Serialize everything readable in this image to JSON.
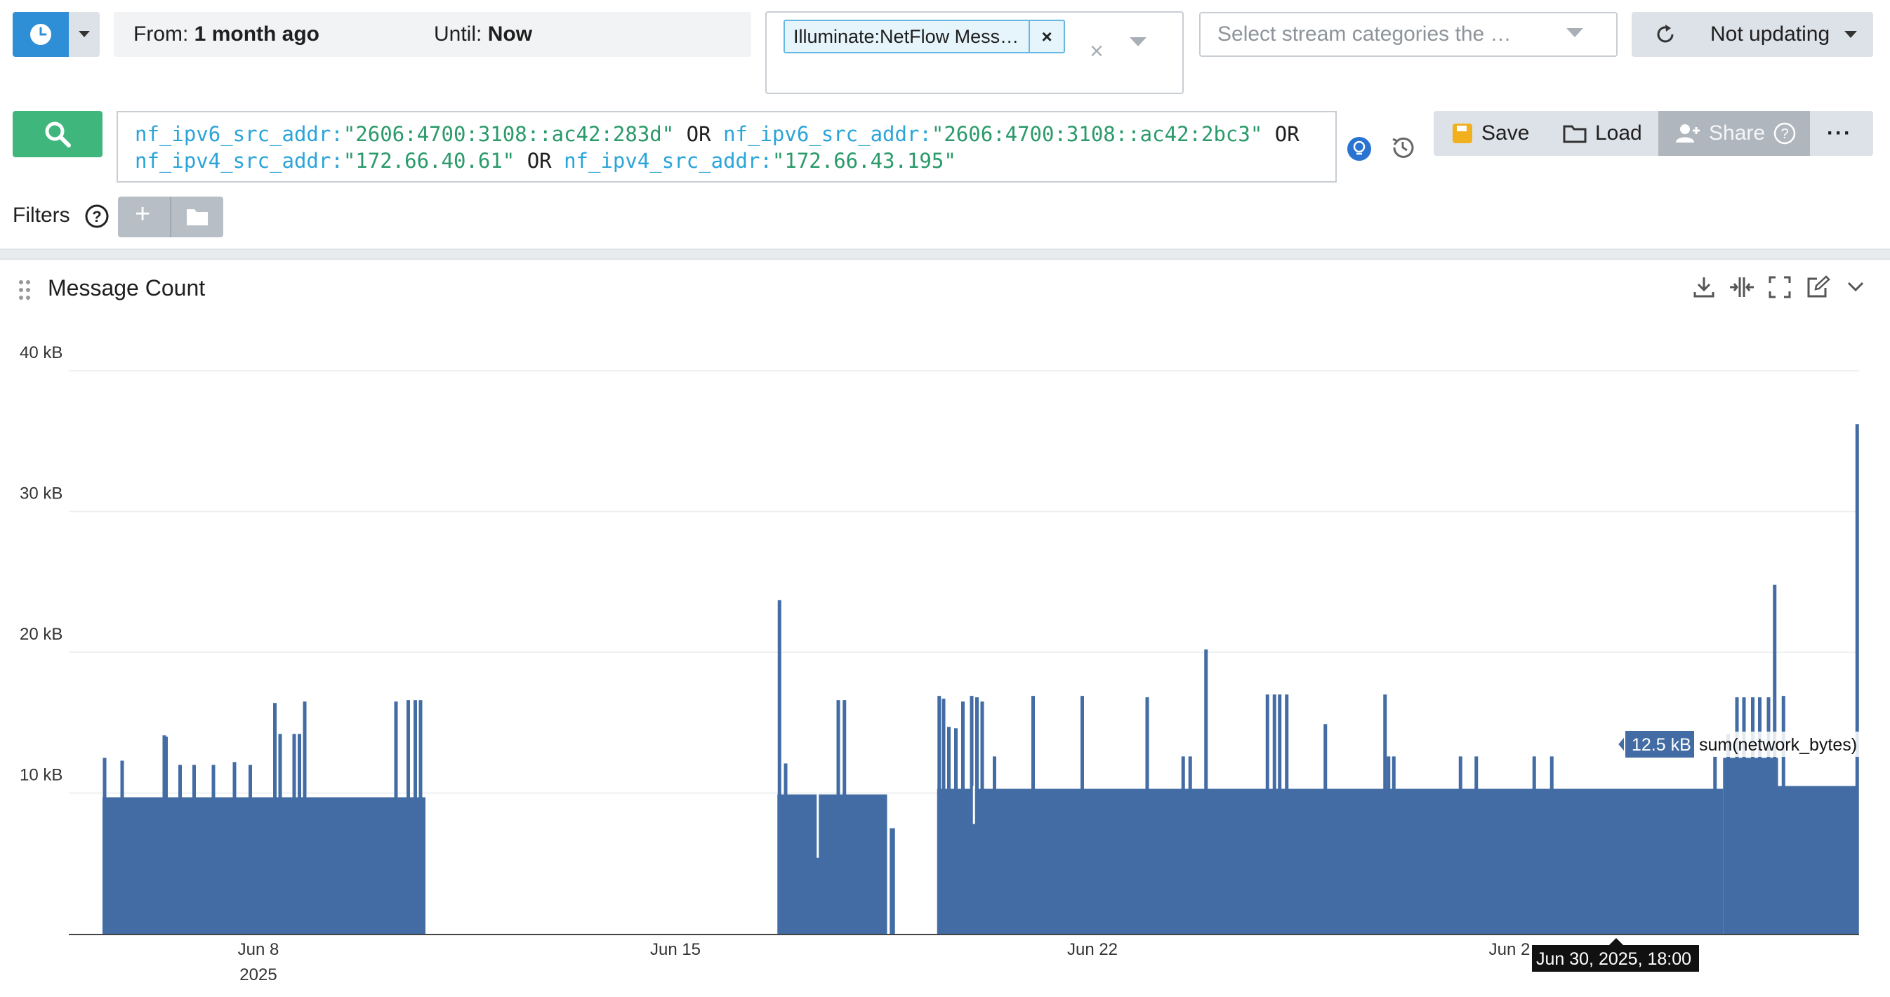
{
  "time_range": {
    "from_prefix": "From:",
    "from_value": "1 month ago",
    "until_prefix": "Until:",
    "until_value": "Now"
  },
  "streams": {
    "selected_tag": "Illuminate:NetFlow Mess…",
    "remove_icon": "×",
    "clear_icon": "×"
  },
  "categories": {
    "placeholder": "Select stream categories the …"
  },
  "refresh": {
    "label": "Not updating"
  },
  "query": {
    "parts": [
      {
        "field": "nf_ipv6_src_addr:",
        "value": "\"2606:4700:3108::ac42:283d\"",
        "op": " OR "
      },
      {
        "field": "nf_ipv6_src_addr:",
        "value": "\"2606:4700:3108::ac42:2bc3\"",
        "op": " OR"
      },
      {
        "field": "nf_ipv4_src_addr:",
        "value": "\"172.66.40.61\"",
        "op": " OR "
      },
      {
        "field": "nf_ipv4_src_addr:",
        "value": "\"172.66.43.195\"",
        "op": ""
      }
    ]
  },
  "actions": {
    "save": "Save",
    "load": "Load",
    "share": "Share",
    "more": "···"
  },
  "filters": {
    "label": "Filters",
    "add": "+"
  },
  "panel": {
    "title": "Message Count"
  },
  "colors": {
    "bar": "#426ca3",
    "primary": "#2f8fd6",
    "search": "#3fb67c"
  },
  "chart_data": {
    "type": "bar",
    "ylabel": "",
    "yticks": [
      "40 kB",
      "30 kB",
      "20 kB",
      "10 kB"
    ],
    "ylim": [
      0,
      40
    ],
    "unit": "kB",
    "xticks": [
      "Jun 8",
      "Jun 15",
      "Jun 22",
      "Jun 2"
    ],
    "x_year_label": "2025",
    "segments": [
      {
        "x0": 0.0,
        "x1": 0.184,
        "base": 9.7
      },
      {
        "x0": 0.3845,
        "x1": 0.447,
        "base": 9.9
      },
      {
        "x0": 0.4485,
        "x1": 0.4515,
        "base": 7.5
      },
      {
        "x0": 0.4755,
        "x1": 0.9233,
        "base": 10.3
      },
      {
        "x0": 0.9233,
        "x1": 0.9546,
        "base": 12.5
      },
      {
        "x0": 0.9546,
        "x1": 0.9995,
        "base": 10.5
      }
    ],
    "spikes": [
      {
        "x": 0.001,
        "v": 12.5
      },
      {
        "x": 0.011,
        "v": 12.3
      },
      {
        "x": 0.035,
        "v": 14.1
      },
      {
        "x": 0.036,
        "v": 14.0
      },
      {
        "x": 0.044,
        "v": 12.0
      },
      {
        "x": 0.052,
        "v": 12.0
      },
      {
        "x": 0.063,
        "v": 12.0
      },
      {
        "x": 0.075,
        "v": 12.2
      },
      {
        "x": 0.084,
        "v": 12.0
      },
      {
        "x": 0.098,
        "v": 16.4
      },
      {
        "x": 0.101,
        "v": 14.2
      },
      {
        "x": 0.109,
        "v": 14.2
      },
      {
        "x": 0.112,
        "v": 14.2
      },
      {
        "x": 0.115,
        "v": 16.5
      },
      {
        "x": 0.167,
        "v": 16.5
      },
      {
        "x": 0.174,
        "v": 16.6
      },
      {
        "x": 0.178,
        "v": 16.6
      },
      {
        "x": 0.181,
        "v": 16.6
      },
      {
        "x": 0.3855,
        "v": 23.7
      },
      {
        "x": 0.389,
        "v": 12.1
      },
      {
        "x": 0.419,
        "v": 16.6
      },
      {
        "x": 0.4225,
        "v": 16.6
      },
      {
        "x": 0.4765,
        "v": 16.9
      },
      {
        "x": 0.479,
        "v": 16.7
      },
      {
        "x": 0.482,
        "v": 14.7
      },
      {
        "x": 0.486,
        "v": 14.6
      },
      {
        "x": 0.49,
        "v": 16.5
      },
      {
        "x": 0.495,
        "v": 16.9
      },
      {
        "x": 0.498,
        "v": 16.8
      },
      {
        "x": 0.501,
        "v": 16.5
      },
      {
        "x": 0.508,
        "v": 12.6
      },
      {
        "x": 0.53,
        "v": 16.9
      },
      {
        "x": 0.558,
        "v": 16.9
      },
      {
        "x": 0.595,
        "v": 16.8
      },
      {
        "x": 0.6155,
        "v": 12.6
      },
      {
        "x": 0.6195,
        "v": 12.6
      },
      {
        "x": 0.6285,
        "v": 20.2
      },
      {
        "x": 0.6635,
        "v": 17.0
      },
      {
        "x": 0.6675,
        "v": 17.0
      },
      {
        "x": 0.6705,
        "v": 17.0
      },
      {
        "x": 0.6745,
        "v": 17.0
      },
      {
        "x": 0.6965,
        "v": 14.9
      },
      {
        "x": 0.7305,
        "v": 17.0
      },
      {
        "x": 0.7325,
        "v": 12.6
      },
      {
        "x": 0.7355,
        "v": 12.6
      },
      {
        "x": 0.7735,
        "v": 12.6
      },
      {
        "x": 0.7825,
        "v": 12.6
      },
      {
        "x": 0.8155,
        "v": 12.6
      },
      {
        "x": 0.8255,
        "v": 12.6
      },
      {
        "x": 0.9185,
        "v": 12.6
      },
      {
        "x": 0.926,
        "v": 14.2
      },
      {
        "x": 0.931,
        "v": 16.8
      },
      {
        "x": 0.935,
        "v": 16.8
      },
      {
        "x": 0.94,
        "v": 16.8
      },
      {
        "x": 0.944,
        "v": 16.8
      },
      {
        "x": 0.949,
        "v": 16.8
      },
      {
        "x": 0.9525,
        "v": 24.8
      },
      {
        "x": 0.9575,
        "v": 16.9
      },
      {
        "x": 0.9995,
        "v": 36.2
      }
    ],
    "dips": [
      {
        "x": 0.4075,
        "v": 5.4
      },
      {
        "x": 0.4965,
        "v": 7.8
      }
    ],
    "tooltip": {
      "value": "12.5 kB",
      "series": "sum(network_bytes)",
      "time": "Jun 30, 2025, 18:00"
    }
  }
}
